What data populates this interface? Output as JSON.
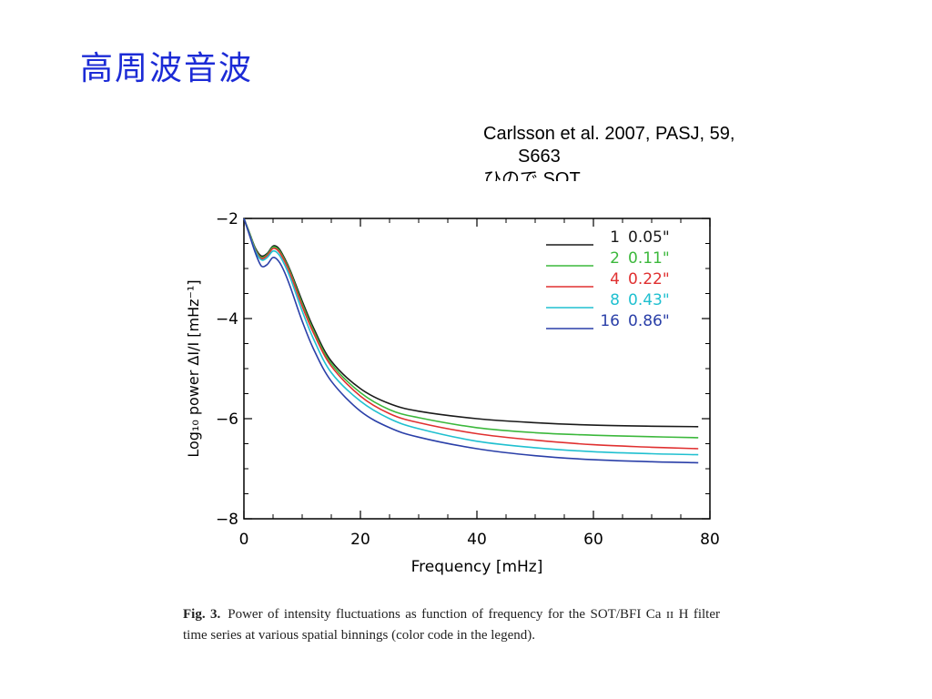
{
  "slide": {
    "title": "高周波音波",
    "citation": {
      "line1": "Carlsson et al. 2007, PASJ, 59,",
      "line2": "S663",
      "line3": "ひので SOT"
    }
  },
  "caption": {
    "label": "Fig. 3.",
    "text": "Power of intensity fluctuations as function of frequency for the SOT/BFI Ca ɪɪ H filter time series at various spatial binnings (color code in the legend)."
  },
  "colors": {
    "title": "#1c2bd6",
    "series_1": "#1a1a1a",
    "series_2": "#3cb83c",
    "series_4": "#e03030",
    "series_8": "#20c0d0",
    "series_16": "#2a3fa8"
  },
  "chart_data": {
    "type": "line",
    "xlabel": "Frequency [mHz]",
    "ylabel": "Log₁₀ power ΔI/I [mHz⁻¹]",
    "xlim": [
      0,
      80
    ],
    "ylim": [
      -8,
      -2
    ],
    "x_ticks": [
      "0",
      "20",
      "40",
      "60",
      "80"
    ],
    "y_ticks": [
      "-2",
      "-4",
      "-6",
      "-8"
    ],
    "grid": false,
    "legend_position": "top-right",
    "x": [
      0,
      1,
      2,
      3,
      4,
      5,
      6,
      7,
      8,
      10,
      12,
      15,
      20,
      25,
      30,
      40,
      50,
      60,
      70,
      78
    ],
    "series": [
      {
        "name": "1",
        "binning": "0.05\"",
        "color": "#1a1a1a",
        "values": [
          -1.95,
          -2.3,
          -2.6,
          -2.75,
          -2.7,
          -2.55,
          -2.6,
          -2.8,
          -3.05,
          -3.65,
          -4.2,
          -4.85,
          -5.4,
          -5.7,
          -5.85,
          -6.0,
          -6.08,
          -6.13,
          -6.15,
          -6.16
        ]
      },
      {
        "name": "2",
        "binning": "0.11\"",
        "color": "#3cb83c",
        "values": [
          -1.95,
          -2.3,
          -2.62,
          -2.78,
          -2.72,
          -2.57,
          -2.63,
          -2.83,
          -3.08,
          -3.7,
          -4.25,
          -4.9,
          -5.48,
          -5.82,
          -5.98,
          -6.18,
          -6.28,
          -6.33,
          -6.36,
          -6.38
        ]
      },
      {
        "name": "4",
        "binning": "0.22\"",
        "color": "#e03030",
        "values": [
          -1.95,
          -2.32,
          -2.64,
          -2.8,
          -2.74,
          -2.6,
          -2.66,
          -2.86,
          -3.12,
          -3.75,
          -4.3,
          -4.95,
          -5.55,
          -5.9,
          -6.08,
          -6.3,
          -6.43,
          -6.52,
          -6.57,
          -6.6
        ]
      },
      {
        "name": "8",
        "binning": "0.43\"",
        "color": "#20c0d0",
        "values": [
          -1.95,
          -2.33,
          -2.66,
          -2.83,
          -2.78,
          -2.65,
          -2.72,
          -2.93,
          -3.2,
          -3.85,
          -4.42,
          -5.08,
          -5.65,
          -6.0,
          -6.2,
          -6.45,
          -6.58,
          -6.66,
          -6.7,
          -6.72
        ]
      },
      {
        "name": "16",
        "binning": "0.86\"",
        "color": "#2a3fa8",
        "values": [
          -1.95,
          -2.35,
          -2.7,
          -2.95,
          -2.92,
          -2.78,
          -2.86,
          -3.08,
          -3.38,
          -4.05,
          -4.62,
          -5.25,
          -5.85,
          -6.18,
          -6.37,
          -6.6,
          -6.74,
          -6.82,
          -6.86,
          -6.88
        ]
      }
    ]
  }
}
